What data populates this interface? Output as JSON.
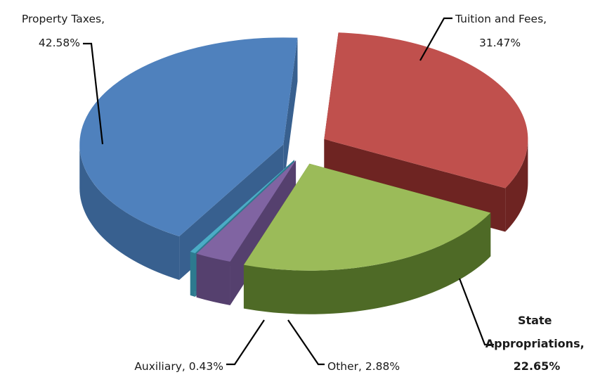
{
  "chart_data": {
    "type": "pie",
    "title": "",
    "legend": "none",
    "slices": [
      {
        "name": "Property Taxes",
        "value": 42.58,
        "label": "42.58%",
        "color": "#4f81bd",
        "side": "#38608f",
        "bold": false
      },
      {
        "name": "Tuition and Fees",
        "value": 31.47,
        "label": "31.47%",
        "color": "#c0504d",
        "side": "#6e2422",
        "bold": false
      },
      {
        "name": "State Appropriations",
        "value": 22.65,
        "label": "22.65%",
        "color": "#9bbb59",
        "side": "#4e6a26",
        "bold": true
      },
      {
        "name": "Other",
        "value": 2.88,
        "label": "2.88%",
        "color": "#8064a2",
        "side": "#55406e",
        "bold": false
      },
      {
        "name": "Auxiliary",
        "value": 0.43,
        "label": "0.43%",
        "color": "#4bacc6",
        "side": "#2d7a8f",
        "bold": false
      }
    ]
  }
}
